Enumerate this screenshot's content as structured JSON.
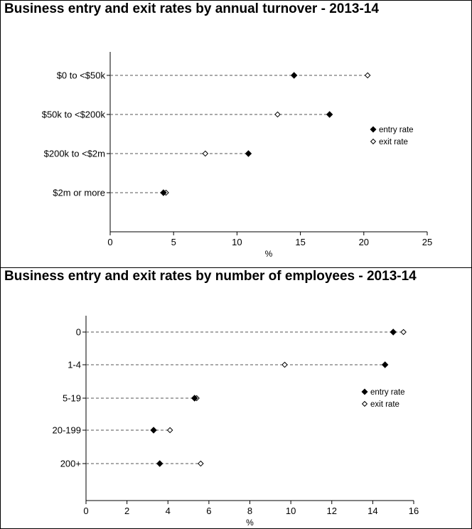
{
  "chart_data": [
    {
      "type": "dot",
      "title": "Business entry and exit rates by annual turnover - 2013-14",
      "xlabel": "%",
      "ylabel": "",
      "xlim": [
        0,
        25
      ],
      "xticks": [
        0,
        5,
        10,
        15,
        20,
        25
      ],
      "categories": [
        "$0 to <$50k",
        "$50k to <$200k",
        "$200k to <$2m",
        "$2m or more"
      ],
      "series": [
        {
          "name": "entry rate",
          "marker": "filled",
          "values": [
            14.5,
            17.3,
            10.9,
            4.2
          ]
        },
        {
          "name": "exit rate",
          "marker": "hollow",
          "values": [
            20.3,
            13.2,
            7.5,
            4.4
          ]
        }
      ],
      "legend_position": "right",
      "grid": false
    },
    {
      "type": "dot",
      "title": "Business entry and exit rates by number of employees - 2013-14",
      "xlabel": "%",
      "ylabel": "",
      "xlim": [
        0,
        16
      ],
      "xticks": [
        0,
        2,
        4,
        6,
        8,
        10,
        12,
        14,
        16
      ],
      "categories": [
        "0",
        "1-4",
        "5-19",
        "20-199",
        "200+"
      ],
      "series": [
        {
          "name": "entry rate",
          "marker": "filled",
          "values": [
            15.0,
            14.6,
            5.3,
            3.3,
            3.6
          ]
        },
        {
          "name": "exit rate",
          "marker": "hollow",
          "values": [
            15.5,
            9.7,
            5.4,
            4.1,
            5.6
          ]
        }
      ],
      "legend_position": "right",
      "grid": false
    }
  ]
}
